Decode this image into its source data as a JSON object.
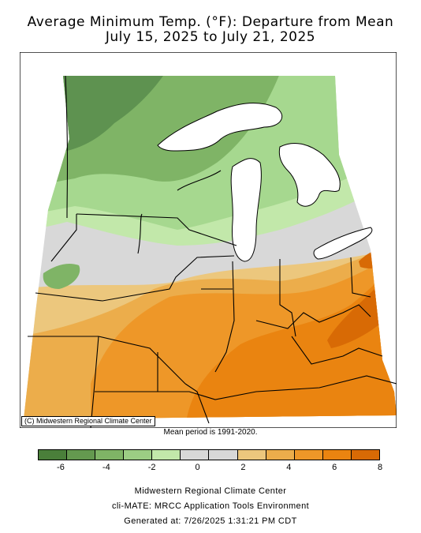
{
  "title_line1": "Average Minimum Temp. (°F): Departure from Mean",
  "title_line2": "July 15, 2025 to July 21, 2025",
  "credit": "(C) Midwestern Regional Climate Center",
  "mean_period": "Mean period is 1991-2020.",
  "legend": {
    "colors": [
      "#4a7f3a",
      "#64994f",
      "#7fb466",
      "#9ccd84",
      "#c2e8aa",
      "#d8d8d8",
      "#d8d8d8",
      "#ecc77d",
      "#ecad4b",
      "#ee9728",
      "#ea8410",
      "#d86a05"
    ],
    "ticks": [
      "-6",
      "-4",
      "-2",
      "0",
      "2",
      "4",
      "6",
      "8"
    ]
  },
  "map_colors": {
    "dark_green": "#5e9250",
    "mid_green": "#7fb466",
    "light_green": "#a6d88f",
    "pale_green": "#c2e8aa",
    "gray": "#d8d8d8",
    "tan": "#ecc77d",
    "light_orange": "#ecad4b",
    "orange": "#ee9728",
    "dark_orange": "#ea8410",
    "deep_orange": "#d86a05",
    "lake": "#ffffff"
  },
  "footer": {
    "line1": "Midwestern Regional Climate Center",
    "line2": "cli-MATE: MRCC Application Tools Environment",
    "line3": "Generated at: 7/26/2025 1:31:21 PM CDT"
  }
}
